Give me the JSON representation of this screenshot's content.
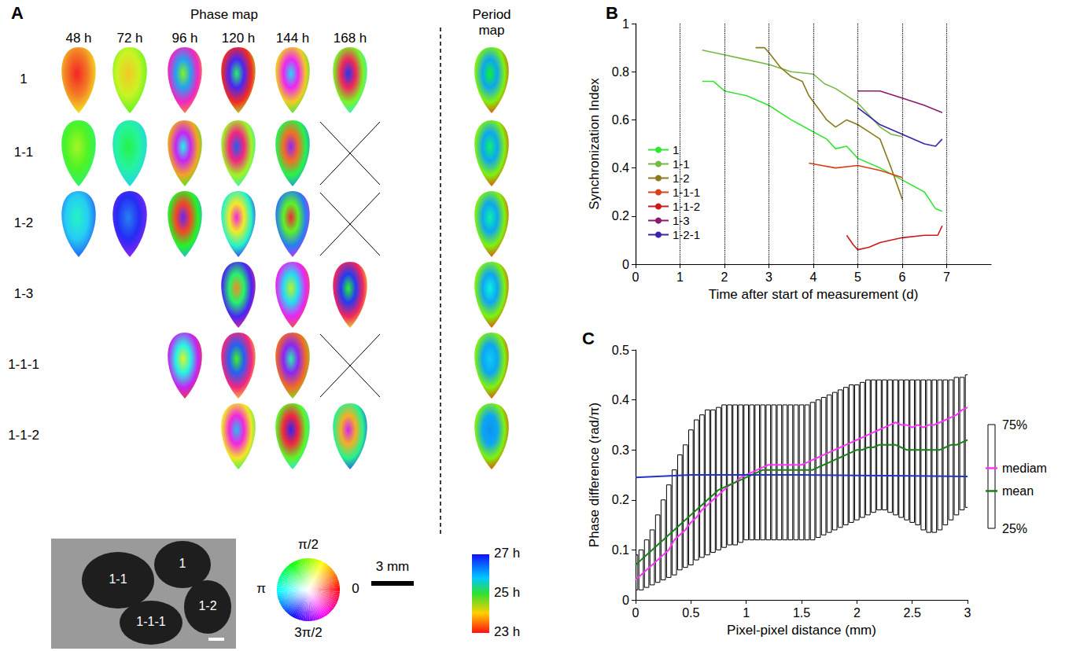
{
  "chart_data": [
    {
      "panel": "B",
      "type": "line",
      "x_label": "Time after start of measurement (d)",
      "y_label": "Synchronization Index",
      "xlim": [
        0,
        8
      ],
      "xticks": [
        0,
        1,
        2,
        3,
        4,
        5,
        6,
        7
      ],
      "ylim": [
        0,
        1
      ],
      "yticks": [
        0,
        0.2,
        0.4,
        0.6,
        0.8,
        1
      ],
      "grid": "x",
      "legend": "left",
      "series": [
        {
          "name": "1",
          "color": "#33e633",
          "x": [
            1.5,
            1.75,
            2,
            2.5,
            3,
            3.5,
            4,
            4.3,
            4.5,
            4.75,
            5,
            5.5,
            6,
            6.5,
            6.75,
            6.9
          ],
          "values": [
            0.76,
            0.76,
            0.72,
            0.7,
            0.66,
            0.6,
            0.55,
            0.52,
            0.48,
            0.49,
            0.44,
            0.4,
            0.35,
            0.3,
            0.23,
            0.22
          ]
        },
        {
          "name": "1-1",
          "color": "#76b843",
          "x": [
            1.5,
            2,
            2.5,
            3,
            3.5,
            4,
            4.25,
            4.5,
            5,
            5.25,
            5.5,
            5.75,
            6
          ],
          "values": [
            0.89,
            0.87,
            0.85,
            0.83,
            0.8,
            0.79,
            0.75,
            0.73,
            0.67,
            0.62,
            0.57,
            0.54,
            0.53
          ]
        },
        {
          "name": "1-2",
          "color": "#8c7a1e",
          "x": [
            2.7,
            2.9,
            3,
            3.25,
            3.5,
            3.75,
            3.9,
            4.1,
            4.3,
            4.5,
            4.75,
            5,
            5.25,
            5.5,
            5.75,
            6
          ],
          "values": [
            0.9,
            0.9,
            0.88,
            0.82,
            0.78,
            0.76,
            0.7,
            0.65,
            0.6,
            0.57,
            0.6,
            0.58,
            0.55,
            0.52,
            0.4,
            0.27
          ]
        },
        {
          "name": "1-1-1",
          "color": "#d9401a",
          "x": [
            3.9,
            4.5,
            5,
            5.5,
            6
          ],
          "values": [
            0.42,
            0.4,
            0.41,
            0.39,
            0.36
          ]
        },
        {
          "name": "1-1-2",
          "color": "#cc1a1a",
          "x": [
            4.75,
            4.9,
            5,
            5.25,
            5.5,
            6,
            6.5,
            6.8,
            6.9
          ],
          "values": [
            0.12,
            0.08,
            0.06,
            0.07,
            0.09,
            0.11,
            0.12,
            0.12,
            0.16
          ]
        },
        {
          "name": "1-3",
          "color": "#8b1a6e",
          "x": [
            5,
            5.5,
            6,
            6.5,
            6.9
          ],
          "values": [
            0.72,
            0.72,
            0.69,
            0.66,
            0.63
          ]
        },
        {
          "name": "1-2-1",
          "color": "#4020b0",
          "x": [
            5,
            5.5,
            6,
            6.5,
            6.75,
            6.9
          ],
          "values": [
            0.65,
            0.58,
            0.54,
            0.5,
            0.49,
            0.52
          ]
        }
      ]
    },
    {
      "panel": "C",
      "type": "box",
      "x_label": "Pixel-pixel distance (mm)",
      "y_label": "Phase difference (rad/π)",
      "xlim": [
        0,
        3
      ],
      "xticks": [
        0,
        0.5,
        1,
        1.5,
        2,
        2.5,
        3
      ],
      "ylim": [
        0,
        0.5
      ],
      "yticks": [
        0,
        0.1,
        0.2,
        0.3,
        0.4,
        0.5
      ],
      "x": [
        0,
        0.05,
        0.1,
        0.15,
        0.2,
        0.25,
        0.3,
        0.35,
        0.4,
        0.45,
        0.5,
        0.55,
        0.6,
        0.65,
        0.7,
        0.75,
        0.8,
        0.85,
        0.9,
        0.95,
        1,
        1.05,
        1.1,
        1.15,
        1.2,
        1.25,
        1.3,
        1.35,
        1.4,
        1.45,
        1.5,
        1.55,
        1.6,
        1.65,
        1.7,
        1.75,
        1.8,
        1.85,
        1.9,
        1.95,
        2,
        2.05,
        2.1,
        2.15,
        2.2,
        2.25,
        2.3,
        2.35,
        2.4,
        2.45,
        2.5,
        2.55,
        2.6,
        2.65,
        2.7,
        2.75,
        2.8,
        2.85,
        2.9,
        2.95,
        3
      ],
      "q1": [
        0.02,
        0.02,
        0.025,
        0.03,
        0.035,
        0.04,
        0.045,
        0.05,
        0.06,
        0.065,
        0.07,
        0.08,
        0.085,
        0.09,
        0.095,
        0.1,
        0.105,
        0.11,
        0.11,
        0.115,
        0.12,
        0.12,
        0.12,
        0.12,
        0.12,
        0.12,
        0.12,
        0.12,
        0.12,
        0.12,
        0.12,
        0.12,
        0.12,
        0.125,
        0.13,
        0.135,
        0.14,
        0.145,
        0.15,
        0.155,
        0.16,
        0.165,
        0.17,
        0.175,
        0.18,
        0.18,
        0.175,
        0.17,
        0.165,
        0.16,
        0.155,
        0.15,
        0.14,
        0.135,
        0.135,
        0.14,
        0.15,
        0.16,
        0.17,
        0.18,
        0.185
      ],
      "q3": [
        0.09,
        0.1,
        0.12,
        0.14,
        0.17,
        0.2,
        0.23,
        0.26,
        0.29,
        0.31,
        0.34,
        0.36,
        0.37,
        0.38,
        0.38,
        0.385,
        0.39,
        0.39,
        0.39,
        0.39,
        0.39,
        0.39,
        0.39,
        0.39,
        0.39,
        0.39,
        0.39,
        0.39,
        0.39,
        0.39,
        0.39,
        0.39,
        0.395,
        0.4,
        0.405,
        0.41,
        0.415,
        0.42,
        0.425,
        0.43,
        0.43,
        0.435,
        0.44,
        0.44,
        0.44,
        0.44,
        0.44,
        0.44,
        0.44,
        0.44,
        0.44,
        0.44,
        0.44,
        0.44,
        0.44,
        0.44,
        0.44,
        0.44,
        0.445,
        0.445,
        0.45
      ],
      "key": {
        "top": "75%",
        "bottom": "25%"
      },
      "series": [
        {
          "name": "mediam",
          "color": "#ff33ff",
          "values": [
            0.04,
            0.05,
            0.06,
            0.07,
            0.08,
            0.09,
            0.1,
            0.12,
            0.13,
            0.14,
            0.155,
            0.165,
            0.18,
            0.19,
            0.2,
            0.21,
            0.22,
            0.23,
            0.235,
            0.245,
            0.25,
            0.255,
            0.26,
            0.265,
            0.27,
            0.27,
            0.27,
            0.27,
            0.27,
            0.27,
            0.27,
            0.275,
            0.28,
            0.285,
            0.29,
            0.295,
            0.3,
            0.305,
            0.31,
            0.315,
            0.32,
            0.325,
            0.33,
            0.335,
            0.34,
            0.345,
            0.35,
            0.355,
            0.35,
            0.35,
            0.345,
            0.35,
            0.345,
            0.35,
            0.35,
            0.355,
            0.36,
            0.365,
            0.37,
            0.38,
            0.385
          ]
        },
        {
          "name": "mean",
          "color": "#1a801a",
          "values": [
            0.07,
            0.08,
            0.09,
            0.1,
            0.11,
            0.12,
            0.13,
            0.14,
            0.15,
            0.16,
            0.17,
            0.18,
            0.19,
            0.2,
            0.21,
            0.22,
            0.225,
            0.23,
            0.235,
            0.24,
            0.245,
            0.25,
            0.255,
            0.26,
            0.26,
            0.26,
            0.26,
            0.26,
            0.26,
            0.26,
            0.26,
            0.26,
            0.26,
            0.265,
            0.27,
            0.275,
            0.28,
            0.285,
            0.29,
            0.295,
            0.3,
            0.3,
            0.305,
            0.305,
            0.31,
            0.31,
            0.31,
            0.31,
            0.305,
            0.3,
            0.3,
            0.3,
            0.3,
            0.3,
            0.3,
            0.3,
            0.305,
            0.31,
            0.31,
            0.315,
            0.32
          ]
        },
        {
          "color": "#2233cc",
          "x": [
            0,
            0.5,
            1,
            1.5,
            2,
            2.5,
            3
          ],
          "values": [
            0.245,
            0.25,
            0.25,
            0.25,
            0.249,
            0.248,
            0.247
          ]
        }
      ]
    }
  ],
  "figure_a": {
    "panel": "A",
    "title": "Phase map",
    "period_title": "Period map",
    "columns": [
      {
        "value": 48,
        "label": "48 h"
      },
      {
        "value": 72,
        "label": "72 h"
      },
      {
        "value": 96,
        "label": "96 h"
      },
      {
        "value": 120,
        "label": "120 h"
      },
      {
        "value": 144,
        "label": "144 h"
      },
      {
        "value": 168,
        "label": "168 h"
      }
    ],
    "rows": [
      {
        "label": "1",
        "maps": [
          48,
          72,
          96,
          120,
          144,
          168
        ]
      },
      {
        "label": "1-1",
        "maps": [
          48,
          72,
          96,
          120,
          144
        ],
        "ended": [
          168
        ]
      },
      {
        "label": "1-2",
        "maps": [
          48,
          72,
          96,
          120,
          144
        ],
        "ended": [
          168
        ]
      },
      {
        "label": "1-3",
        "maps": [
          120,
          144,
          168
        ]
      },
      {
        "label": "1-1-1",
        "maps": [
          96,
          120,
          144
        ],
        "ended": [
          168
        ]
      },
      {
        "label": "1-1-2",
        "maps": [
          120,
          144,
          168
        ]
      }
    ],
    "phase_wheel": [
      {
        "value": 0.5,
        "label": "π/2"
      },
      {
        "value": 1,
        "label": "π"
      },
      {
        "value": 0,
        "label": "0"
      },
      {
        "value": 1.5,
        "label": "3π/2"
      }
    ],
    "scale_bar": {
      "value": 3,
      "label": "3 mm"
    },
    "period_colorbar": {
      "range": [
        23,
        27
      ],
      "ticks": [
        {
          "value": 27,
          "label": "27 h"
        },
        {
          "value": 25,
          "label": "25 h"
        },
        {
          "value": 23,
          "label": "23 h"
        }
      ]
    },
    "photo_labels": [
      "1",
      "1-1",
      "1-1-1",
      "1-2"
    ]
  }
}
